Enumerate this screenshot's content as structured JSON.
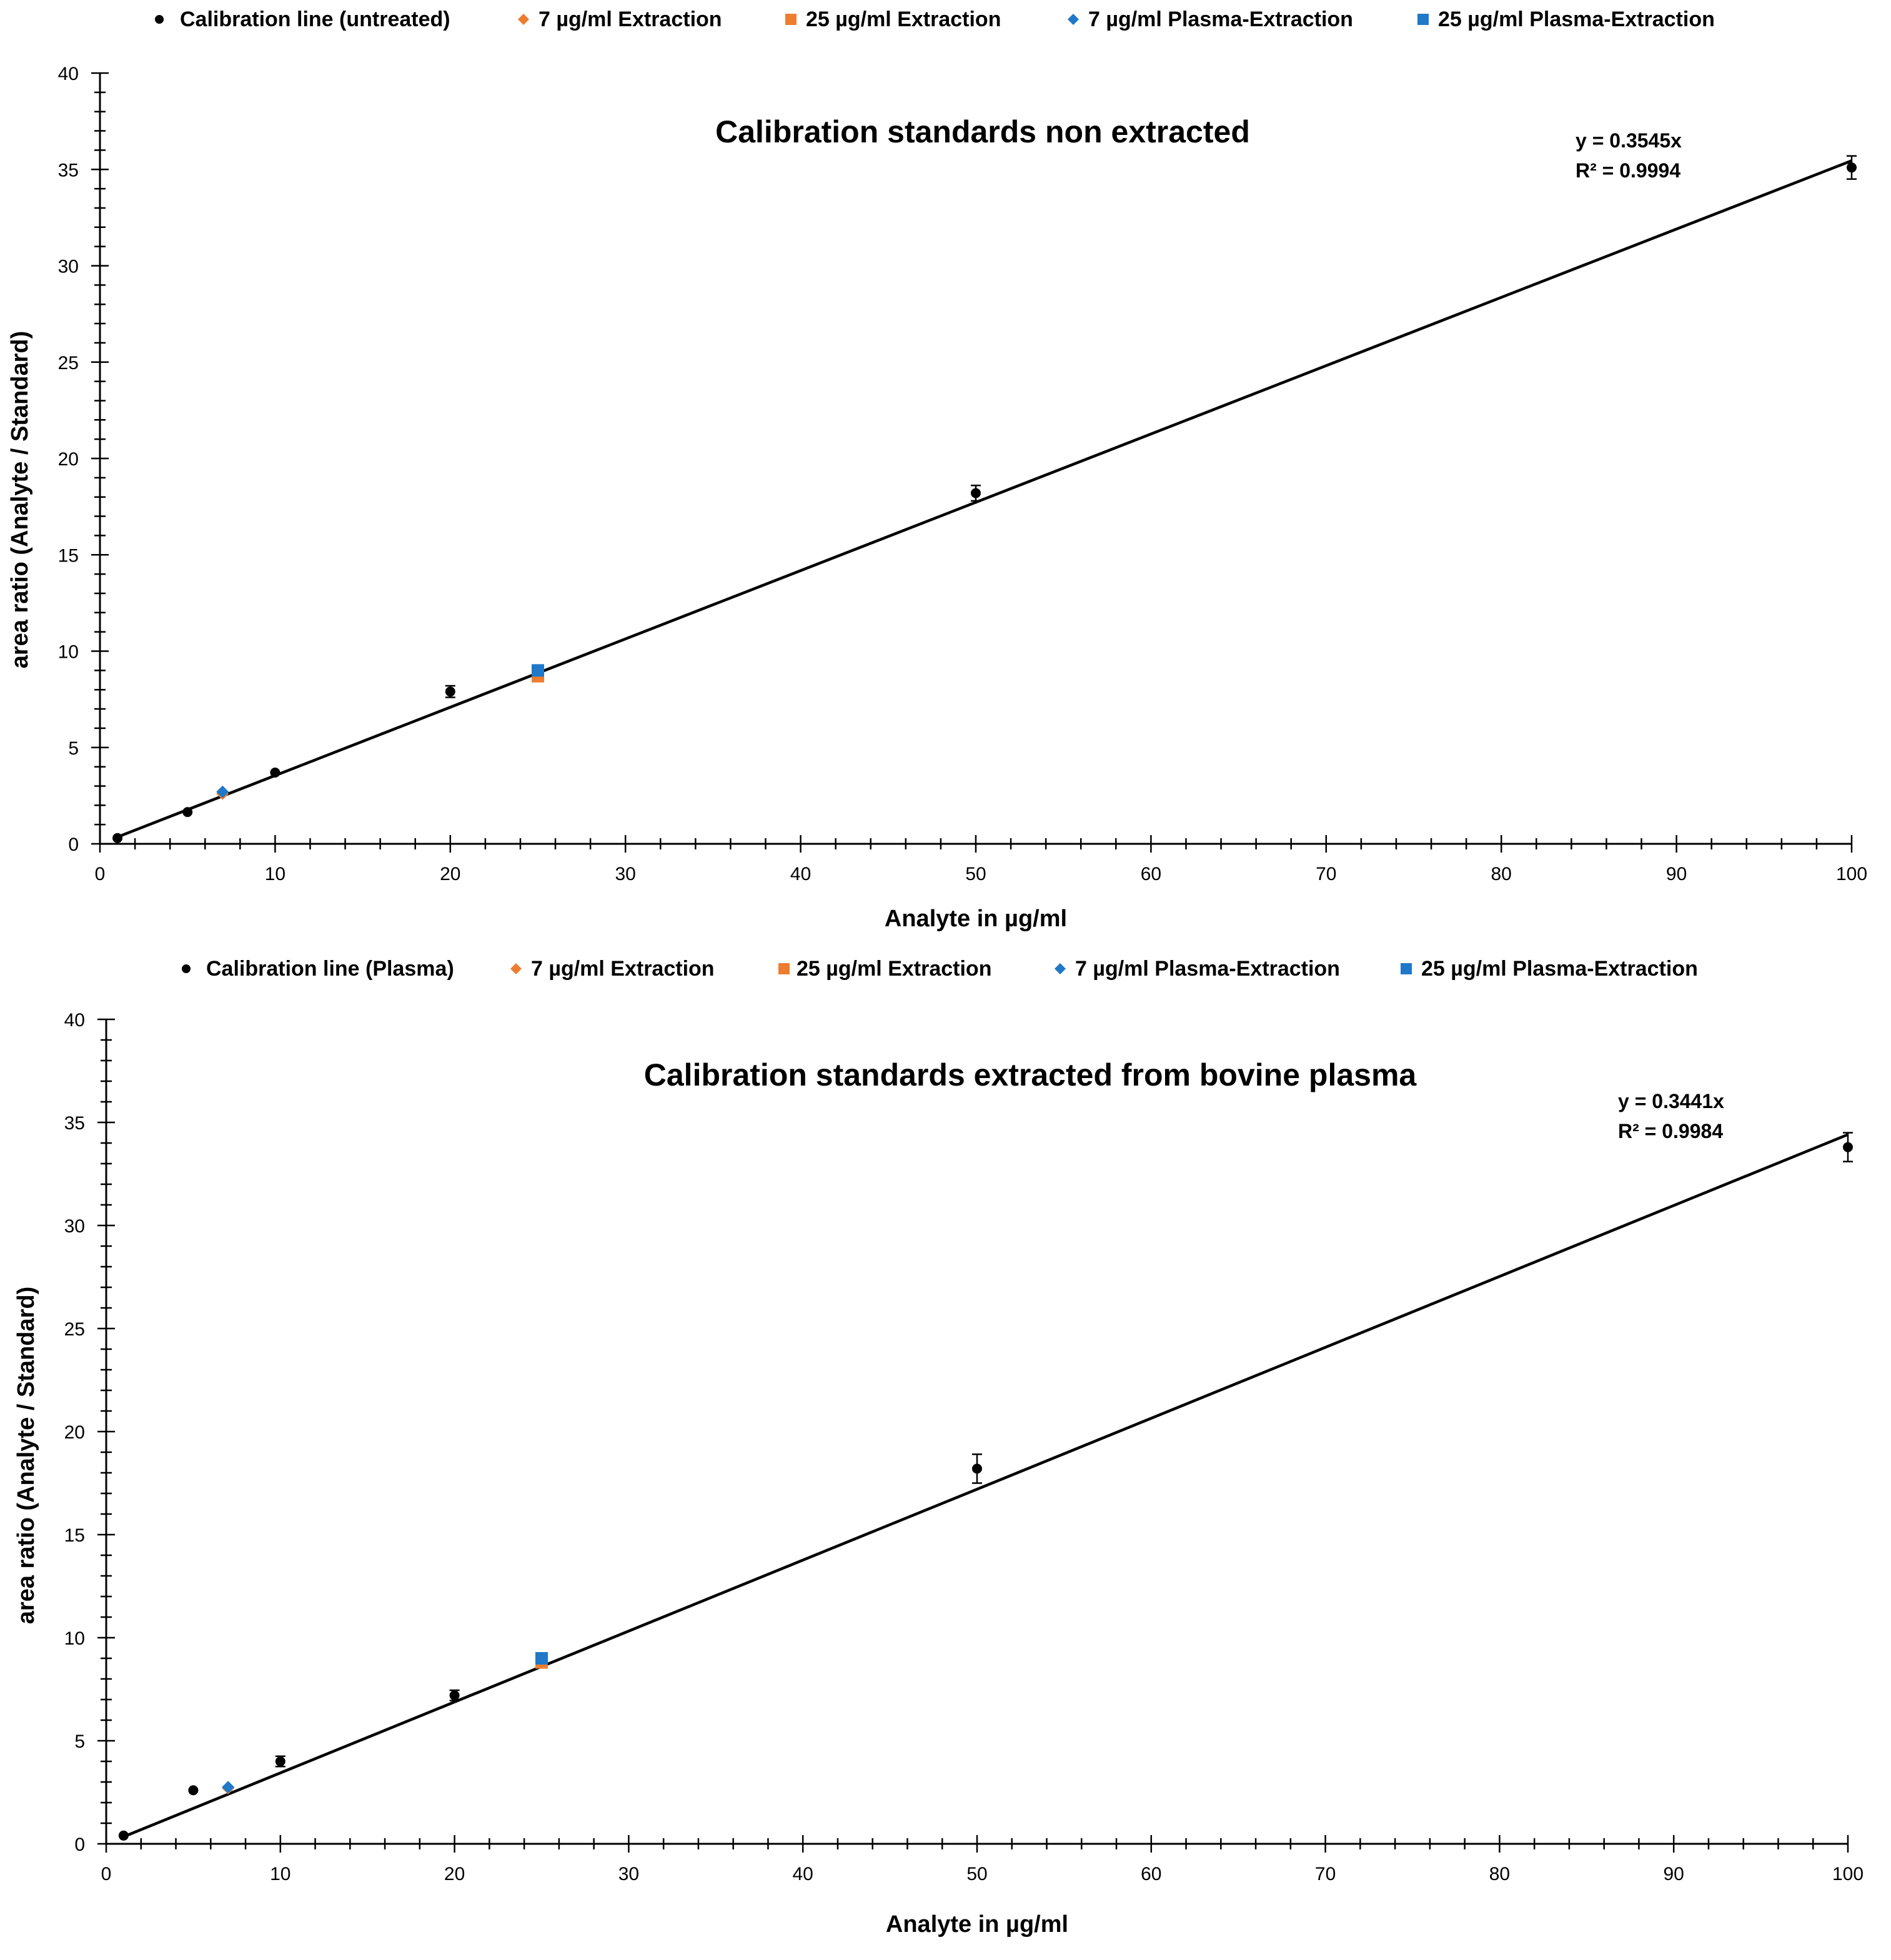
{
  "chart_data": [
    {
      "type": "scatter",
      "title": "Calibration standards non extracted",
      "xlabel": "Analyte in µg/ml",
      "ylabel": "area ratio (Analyte / Standard)",
      "xlim": [
        0,
        100
      ],
      "ylim": [
        0,
        40
      ],
      "x_ticks": [
        "0",
        "10",
        "20",
        "30",
        "40",
        "50",
        "60",
        "70",
        "80",
        "90",
        "100"
      ],
      "y_ticks": [
        "0",
        "5",
        "10",
        "15",
        "20",
        "25",
        "30",
        "35",
        "40"
      ],
      "grid": false,
      "legend_position": "top",
      "trendline": {
        "slope": 0.3545,
        "x_range": [
          1,
          100
        ],
        "equation": "y = 0.3545x",
        "r_squared": "R² = 0.9994"
      },
      "series": [
        {
          "name": "Calibration line (untreated)",
          "color": "#000000",
          "marker": "circle",
          "points": [
            {
              "x": 1,
              "y": 0.3,
              "err": 0
            },
            {
              "x": 5,
              "y": 1.65,
              "err": 0
            },
            {
              "x": 10,
              "y": 3.7,
              "err": 0
            },
            {
              "x": 20,
              "y": 7.9,
              "err": 0.3
            },
            {
              "x": 50,
              "y": 18.2,
              "err": 0.4
            },
            {
              "x": 100,
              "y": 35.1,
              "err": 0.6
            }
          ]
        },
        {
          "name": "7 µg/ml Extraction",
          "color": "#ED7D31",
          "marker": "diamond",
          "points": [
            {
              "x": 7,
              "y": 2.6
            }
          ]
        },
        {
          "name": "25 µg/ml Extraction",
          "color": "#ED7D31",
          "marker": "square",
          "points": [
            {
              "x": 25,
              "y": 8.7
            }
          ]
        },
        {
          "name": "7 µg/ml Plasma-Extraction",
          "color": "#1F78C8",
          "marker": "diamond",
          "points": [
            {
              "x": 7,
              "y": 2.7
            }
          ]
        },
        {
          "name": "25 µg/ml Plasma-Extraction",
          "color": "#1F78C8",
          "marker": "square",
          "points": [
            {
              "x": 25,
              "y": 9.0
            }
          ]
        }
      ]
    },
    {
      "type": "scatter",
      "title": "Calibration standards extracted from bovine plasma",
      "xlabel": "Analyte in µg/ml",
      "ylabel": "area ratio (Analyte / Standard)",
      "xlim": [
        0,
        100
      ],
      "ylim": [
        0,
        40
      ],
      "x_ticks": [
        "0",
        "10",
        "20",
        "30",
        "40",
        "50",
        "60",
        "70",
        "80",
        "90",
        "100"
      ],
      "y_ticks": [
        "0",
        "5",
        "10",
        "15",
        "20",
        "25",
        "30",
        "35",
        "40"
      ],
      "grid": false,
      "legend_position": "top",
      "trendline": {
        "slope": 0.3441,
        "x_range": [
          1,
          100
        ],
        "equation": "y = 0.3441x",
        "r_squared": "R² = 0.9984"
      },
      "series": [
        {
          "name": "Calibration line (Plasma)",
          "color": "#000000",
          "marker": "circle",
          "points": [
            {
              "x": 1,
              "y": 0.4,
              "err": 0
            },
            {
              "x": 5,
              "y": 2.6,
              "err": 0
            },
            {
              "x": 10,
              "y": 4.0,
              "err": 0.25
            },
            {
              "x": 20,
              "y": 7.2,
              "err": 0.25
            },
            {
              "x": 50,
              "y": 18.2,
              "err": 0.7
            },
            {
              "x": 100,
              "y": 33.8,
              "err": 0.7
            }
          ]
        },
        {
          "name": "7 µg/ml Extraction",
          "color": "#ED7D31",
          "marker": "diamond",
          "points": [
            {
              "x": 7,
              "y": 2.7
            }
          ]
        },
        {
          "name": "25 µg/ml Extraction",
          "color": "#ED7D31",
          "marker": "square",
          "points": [
            {
              "x": 25,
              "y": 8.8
            }
          ]
        },
        {
          "name": "7 µg/ml Plasma-Extraction",
          "color": "#1F78C8",
          "marker": "diamond",
          "points": [
            {
              "x": 7,
              "y": 2.75
            }
          ]
        },
        {
          "name": "25 µg/ml Plasma-Extraction",
          "color": "#1F78C8",
          "marker": "square",
          "points": [
            {
              "x": 25,
              "y": 9.0
            }
          ]
        }
      ]
    }
  ]
}
